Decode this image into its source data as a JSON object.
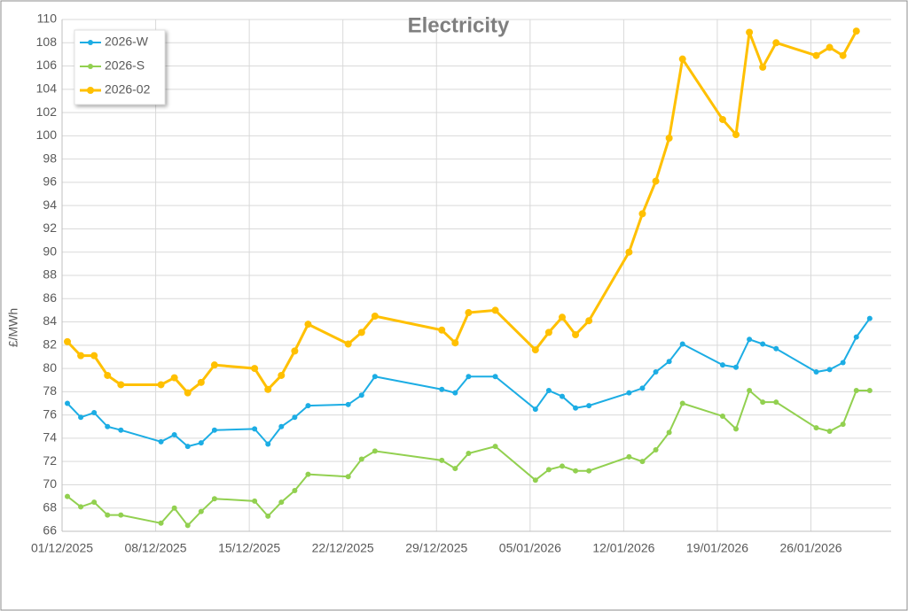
{
  "chart_data": {
    "type": "line",
    "title": "Electricity",
    "y_label": "£/MWh",
    "x": [
      "01/12/2025",
      "02/12/2025",
      "03/12/2025",
      "04/12/2025",
      "05/12/2025",
      "08/12/2025",
      "09/12/2025",
      "10/12/2025",
      "11/12/2025",
      "12/12/2025",
      "15/12/2025",
      "16/12/2025",
      "17/12/2025",
      "18/12/2025",
      "19/12/2025",
      "22/12/2025",
      "23/12/2025",
      "24/12/2025",
      "29/12/2025",
      "30/12/2025",
      "31/12/2025",
      "02/01/2026",
      "05/01/2026",
      "06/01/2026",
      "07/01/2026",
      "08/01/2026",
      "09/01/2026",
      "12/01/2026",
      "13/01/2026",
      "14/01/2026",
      "15/01/2026",
      "16/01/2026",
      "19/01/2026",
      "20/01/2026",
      "21/01/2026",
      "22/01/2026",
      "23/01/2026",
      "26/01/2026",
      "27/01/2026",
      "28/01/2026",
      "29/01/2026",
      "30/01/2026"
    ],
    "series": [
      {
        "name": "2026-W",
        "color": "#1CADE4",
        "values": [
          77.0,
          75.8,
          76.2,
          75.0,
          74.7,
          73.7,
          74.3,
          73.3,
          73.6,
          74.7,
          74.8,
          73.5,
          75.0,
          75.8,
          76.8,
          76.9,
          77.7,
          79.3,
          78.2,
          77.9,
          79.3,
          79.3,
          76.5,
          78.1,
          77.6,
          76.6,
          76.8,
          77.9,
          78.3,
          79.7,
          80.6,
          82.1,
          80.3,
          80.1,
          82.5,
          82.1,
          81.7,
          79.7,
          79.9,
          80.5,
          82.7,
          84.3
        ]
      },
      {
        "name": "2026-S",
        "color": "#92D050",
        "values": [
          69.0,
          68.1,
          68.5,
          67.4,
          67.4,
          66.7,
          68.0,
          66.5,
          67.7,
          68.8,
          68.6,
          67.3,
          68.5,
          69.5,
          70.9,
          70.7,
          72.2,
          72.9,
          72.1,
          71.4,
          72.7,
          73.3,
          70.4,
          71.3,
          71.6,
          71.2,
          71.2,
          72.4,
          72.0,
          73.0,
          74.5,
          77.0,
          75.9,
          74.8,
          78.1,
          77.1,
          77.1,
          74.9,
          74.6,
          75.2,
          78.1,
          78.1
        ]
      },
      {
        "name": "2026-02",
        "color": "#FFC000",
        "values": [
          82.3,
          81.1,
          81.1,
          79.4,
          78.6,
          78.6,
          79.2,
          77.9,
          78.8,
          80.3,
          80.0,
          78.2,
          79.4,
          81.5,
          83.8,
          82.1,
          83.1,
          84.5,
          83.3,
          82.2,
          84.8,
          85.0,
          81.6,
          83.1,
          84.4,
          82.9,
          84.1,
          90.0,
          93.3,
          96.1,
          99.8,
          106.6,
          101.4,
          100.1,
          108.9,
          105.9,
          108.0,
          106.9,
          107.6,
          106.9,
          109.0,
          null
        ]
      }
    ],
    "xlim": [
      "01/12/2025",
      "01/02/2026"
    ],
    "xticks": [
      "01/12/2025",
      "08/12/2025",
      "15/12/2025",
      "22/12/2025",
      "29/12/2025",
      "05/01/2026",
      "12/01/2026",
      "19/01/2026",
      "26/01/2026"
    ],
    "ylim": [
      66,
      110
    ],
    "yticks": [
      66,
      68,
      70,
      72,
      74,
      76,
      78,
      80,
      82,
      84,
      86,
      88,
      90,
      92,
      94,
      96,
      98,
      100,
      102,
      104,
      106,
      108,
      110
    ],
    "grid": true,
    "legend": "upper left"
  }
}
